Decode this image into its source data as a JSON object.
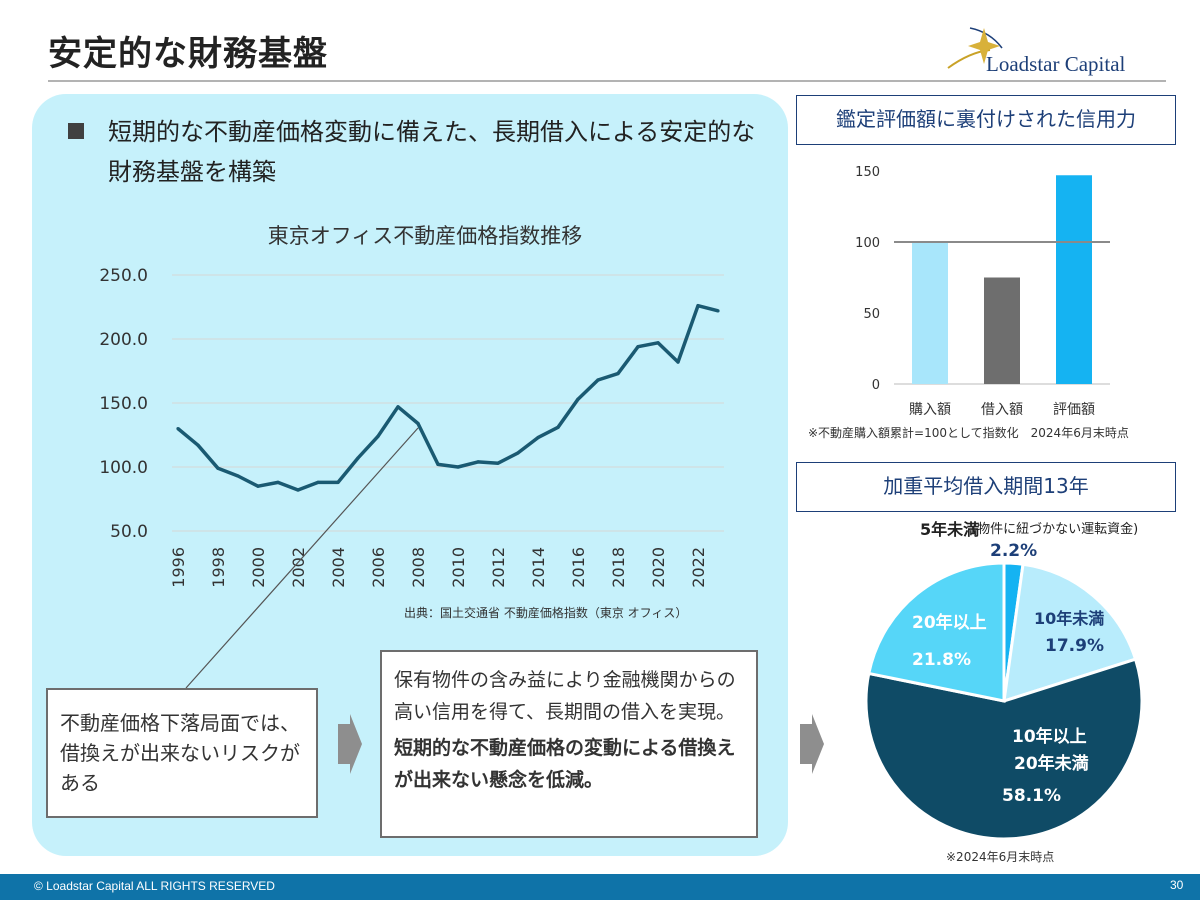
{
  "slide": {
    "title": "安定的な財務基盤",
    "logo_text": "Loadstar Capital",
    "headline": "短期的な不動産価格変動に備えた、長期借入による安定的な財務基盤を構築",
    "footer_copyright": "© Loadstar Capital ALL RIGHTS RESERVED",
    "page_number": "30"
  },
  "left_panel": {
    "chart_source": "出典：国土交通省 不動産価格指数（東京 オフィス）",
    "risk_box_text": "不動産価格下落局面では、借換えが出来ないリスクがある",
    "mid_box_text": "保有物件の含み益により金融機関からの高い信用を得て、長期間の借入を実現。",
    "mid_box_bold": "短期的な不動産価格の変動による借換えが出来ない懸念を低減。"
  },
  "right_panel": {
    "bar_header": "鑑定評価額に裏付けされた信用力",
    "bar_note": "※不動産購入額累計=100として指数化　2024年6月末時点",
    "pie_header": "加重平均借入期間13年",
    "pie_note": "※2024年6月末時点",
    "pie_labels": {
      "under5": "5年未満",
      "under5_note": "(物件に紐づかない運転資金)",
      "under5_value": "2.2%",
      "under10": "10年未満",
      "under10_value": "17.9%",
      "mid_line1": "10年以上",
      "mid_line2": "20年未満",
      "mid_value": "58.1%",
      "over20": "20年以上",
      "over20_value": "21.8%"
    }
  },
  "chart_data": [
    {
      "type": "line",
      "title": "東京オフィス不動産価格指数推移",
      "x": [
        1996,
        1997,
        1998,
        1999,
        2000,
        2001,
        2002,
        2003,
        2004,
        2005,
        2006,
        2007,
        2008,
        2009,
        2010,
        2011,
        2012,
        2013,
        2014,
        2015,
        2016,
        2017,
        2018,
        2019,
        2020,
        2021,
        2022,
        2023
      ],
      "series": [
        {
          "values": [
            130,
            117,
            99,
            93,
            85,
            88,
            82,
            88,
            88,
            107,
            124,
            147,
            134,
            102,
            100,
            104,
            103,
            111,
            123,
            131,
            153,
            168,
            173,
            194,
            197,
            182,
            226,
            222
          ]
        }
      ],
      "yticks": [
        "250.0",
        "200.0",
        "150.0",
        "100.0",
        "50.0"
      ],
      "ylim": [
        50,
        250
      ],
      "xticks": [
        "1996",
        "1998",
        "2000",
        "2002",
        "2004",
        "2006",
        "2008",
        "2010",
        "2012",
        "2014",
        "2016",
        "2018",
        "2020",
        "2022"
      ],
      "grid": true,
      "color": "#1a5a72"
    },
    {
      "type": "bar",
      "categories": [
        "購入額",
        "借入額",
        "評価額"
      ],
      "values": [
        100,
        75,
        147
      ],
      "colors": [
        "#a8e6fb",
        "#6e6e6e",
        "#15b3f2"
      ],
      "yticks": [
        "150",
        "100",
        "50",
        "0"
      ],
      "ylim": [
        0,
        150
      ],
      "reference_line": 100
    },
    {
      "type": "pie",
      "categories": [
        "5年未満",
        "10年未満",
        "10年以上20年未満",
        "20年以上"
      ],
      "values": [
        2.2,
        17.9,
        58.1,
        21.8
      ],
      "colors": [
        "#15b3f2",
        "#b8ecfc",
        "#0f4b66",
        "#56d6f8"
      ]
    }
  ]
}
